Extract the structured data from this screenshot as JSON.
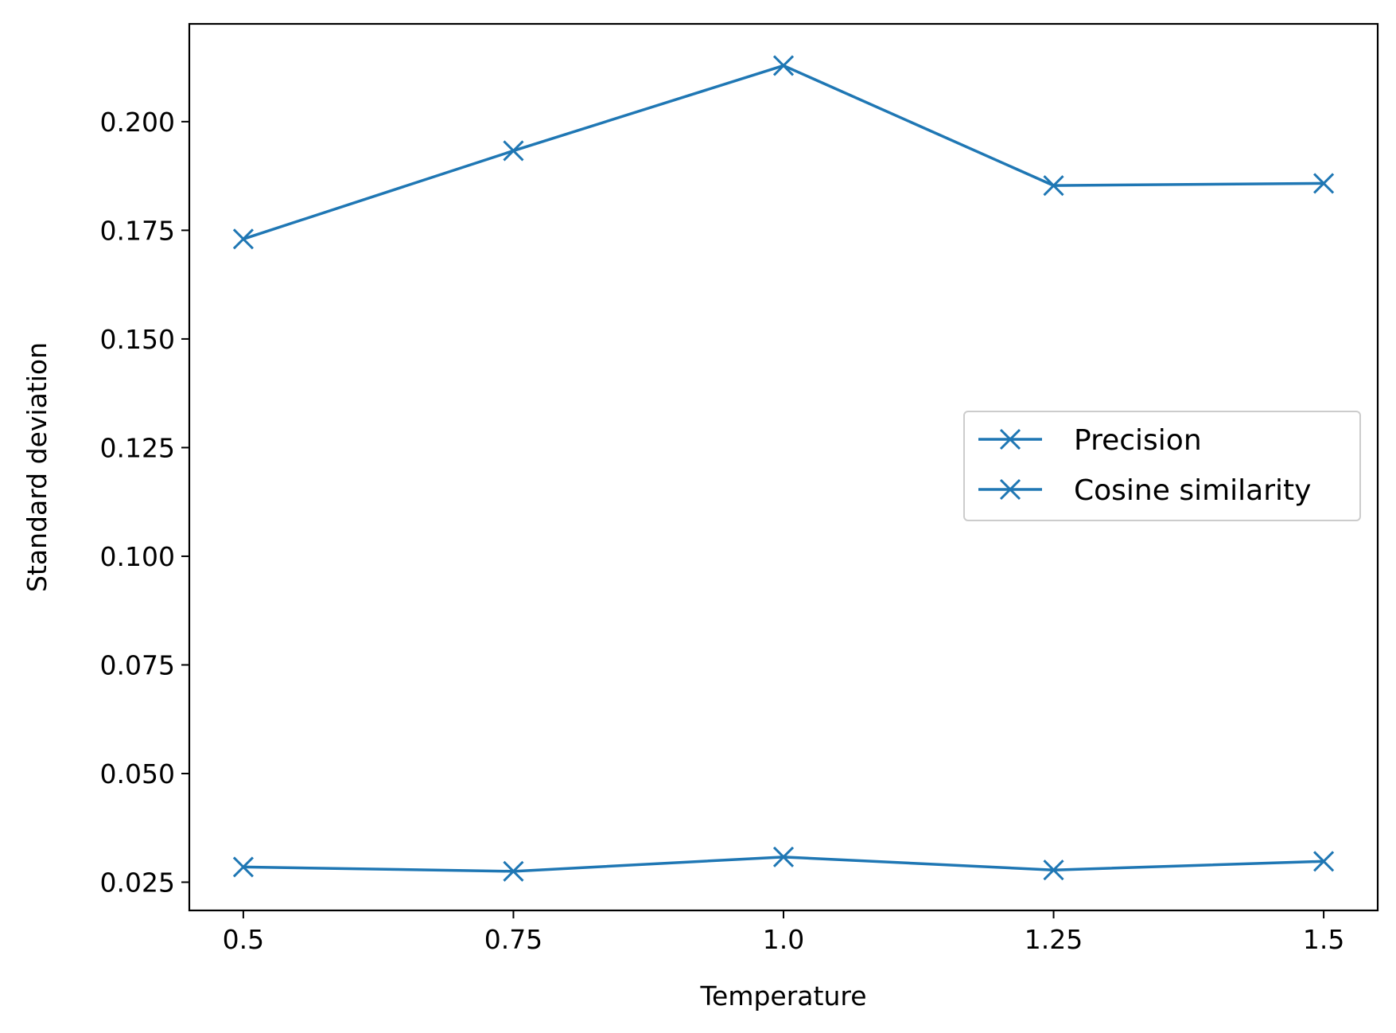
{
  "chart_data": {
    "type": "line",
    "title": "",
    "xlabel": "Temperature",
    "ylabel": "Standard deviation",
    "x": [
      0.5,
      0.75,
      1.0,
      1.25,
      1.5
    ],
    "x_tick_labels": [
      "0.5",
      "0.75",
      "1.0",
      "1.25",
      "1.5"
    ],
    "y_ticks": [
      0.025,
      0.05,
      0.075,
      0.1,
      0.125,
      0.15,
      0.175,
      0.2
    ],
    "y_tick_labels": [
      "0.025",
      "0.050",
      "0.075",
      "0.100",
      "0.125",
      "0.150",
      "0.175",
      "0.200"
    ],
    "xlim": [
      0.45,
      1.55
    ],
    "ylim": [
      0.0185,
      0.2225
    ],
    "grid": false,
    "legend_position": "center-right",
    "series": [
      {
        "name": "Precision",
        "color": "#1f77b4",
        "marker": "x",
        "values": [
          0.173,
          0.1933,
          0.2129,
          0.1853,
          0.1858
        ]
      },
      {
        "name": "Cosine similarity",
        "color": "#1f77b4",
        "marker": "x",
        "values": [
          0.0285,
          0.0275,
          0.0308,
          0.0278,
          0.0298
        ]
      }
    ]
  }
}
